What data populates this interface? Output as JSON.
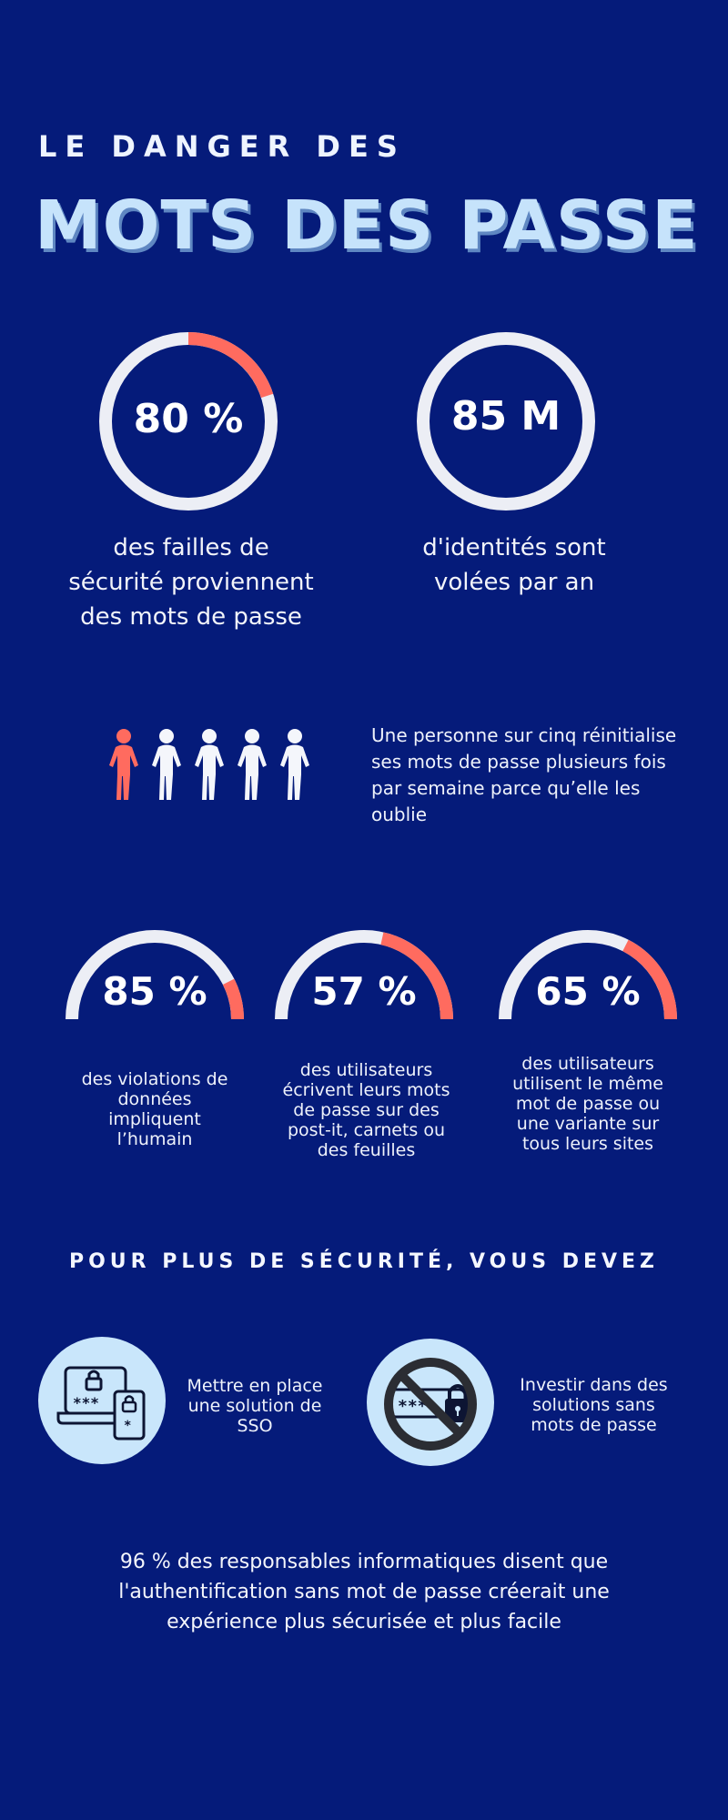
{
  "header": {
    "kicker": "LE DANGER DES",
    "title": "MOTS DES PASSE"
  },
  "colors": {
    "background": "#051b7a",
    "accent": "#ff6b5f",
    "ring_track": "#eceef5",
    "title_light": "#c6e3fb",
    "badge_bg": "#c9e6fb"
  },
  "stats": [
    {
      "value": "80 %",
      "fraction": 0.2,
      "caption": "des failles de sécurité proviennent des mots de passe"
    },
    {
      "value": "85 M",
      "fraction": 0,
      "caption": "d'identités sont volées par an"
    }
  ],
  "people": {
    "total": 5,
    "highlighted": 1,
    "text": "Une personne sur cinq réinitialise ses mots de passe plusieurs fois par semaine parce qu’elle les oublie"
  },
  "gauges": [
    {
      "value": "85 %",
      "fraction": 0.15,
      "caption": "des violations de données impliquent l’humain"
    },
    {
      "value": "57 %",
      "fraction": 0.43,
      "caption": "des utilisateurs écrivent leurs mots de passe sur des post-it, carnets ou des feuilles"
    },
    {
      "value": "65 %",
      "fraction": 0.35,
      "caption": "des utilisateurs utilisent le même mot de passe ou une variante sur tous leurs sites"
    }
  ],
  "recommendations": {
    "heading": "POUR PLUS DE SÉCURITÉ, VOUS DEVEZ",
    "items": [
      {
        "icon": "sso-devices-icon",
        "text": "Mettre en place une solution de SSO"
      },
      {
        "icon": "no-password-icon",
        "text": "Investir dans des solutions sans mots de passe"
      }
    ]
  },
  "footer": {
    "text": "96 % des responsables informatiques disent que l'authentification sans mot de passe créerait une expérience plus sécurisée et plus facile"
  }
}
